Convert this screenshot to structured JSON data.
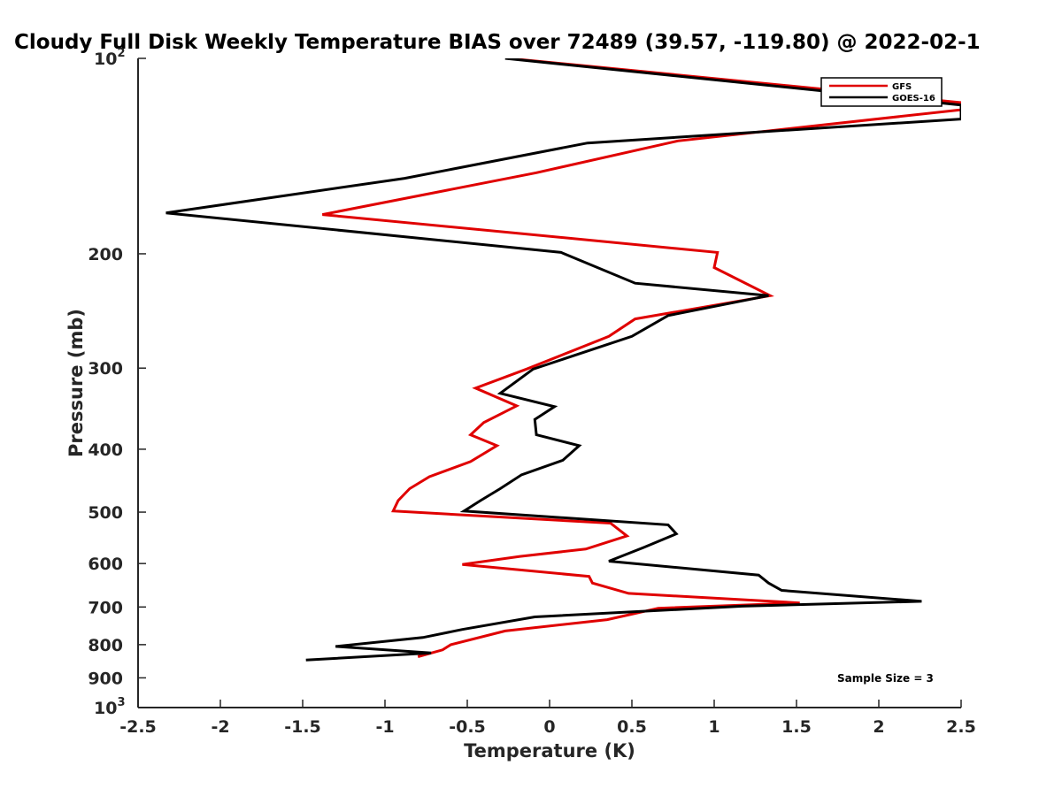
{
  "chart_data": {
    "type": "line",
    "title": "Cloudy Full Disk Weekly Temperature BIAS over 72489 (39.57, -119.80) @ 2022-02-1",
    "xlabel": "Temperature (K)",
    "ylabel": "Pressure (mb)",
    "xlim": [
      -2.5,
      2.5
    ],
    "ylim": [
      100,
      1000
    ],
    "y_scale": "log",
    "y_reversed": true,
    "x_ticks": [
      "-2.5",
      "-2",
      "-1.5",
      "-1",
      "-0.5",
      "0",
      "0.5",
      "1",
      "1.5",
      "2",
      "2.5"
    ],
    "y_ticks": [
      {
        "value": 100,
        "label": "10",
        "sup": "2"
      },
      {
        "value": 200,
        "label": "200",
        "sup": ""
      },
      {
        "value": 300,
        "label": "300",
        "sup": ""
      },
      {
        "value": 400,
        "label": "400",
        "sup": ""
      },
      {
        "value": 500,
        "label": "500",
        "sup": ""
      },
      {
        "value": 600,
        "label": "600",
        "sup": ""
      },
      {
        "value": 700,
        "label": "700",
        "sup": ""
      },
      {
        "value": 800,
        "label": "800",
        "sup": ""
      },
      {
        "value": 900,
        "label": "900",
        "sup": ""
      },
      {
        "value": 1000,
        "label": "10",
        "sup": "3"
      }
    ],
    "grid": false,
    "legend_position": "top-right",
    "annotation": "Sample Size = 3",
    "series": [
      {
        "name": "GFS",
        "color": "#e00000",
        "points": [
          [
            -0.25,
            100
          ],
          [
            2.5,
            117
          ],
          [
            2.5,
            120
          ],
          [
            0.78,
            134
          ],
          [
            -0.08,
            150
          ],
          [
            -1.38,
            174
          ],
          [
            1.02,
            199
          ],
          [
            1.0,
            210
          ],
          [
            1.34,
            232
          ],
          [
            0.52,
            252
          ],
          [
            0.36,
            268
          ],
          [
            -0.14,
            301
          ],
          [
            -0.45,
            322
          ],
          [
            -0.2,
            343
          ],
          [
            -0.4,
            364
          ],
          [
            -0.48,
            380
          ],
          [
            -0.32,
            395
          ],
          [
            -0.48,
            418
          ],
          [
            -0.73,
            441
          ],
          [
            -0.85,
            460
          ],
          [
            -0.92,
            480
          ],
          [
            -0.95,
            498
          ],
          [
            0.37,
            520
          ],
          [
            0.47,
            544
          ],
          [
            0.22,
            570
          ],
          [
            -0.18,
            585
          ],
          [
            -0.53,
            602
          ],
          [
            0.24,
            628
          ],
          [
            0.26,
            643
          ],
          [
            0.48,
            667
          ],
          [
            1.52,
            690
          ],
          [
            0.66,
            703
          ],
          [
            0.5,
            718
          ],
          [
            0.35,
            732
          ],
          [
            -0.27,
            762
          ],
          [
            -0.6,
            800
          ],
          [
            -0.65,
            815
          ],
          [
            -0.8,
            835
          ]
        ]
      },
      {
        "name": "GOES-16",
        "color": "#000000",
        "points": [
          [
            -0.27,
            100
          ],
          [
            2.5,
            118
          ],
          [
            2.5,
            124
          ],
          [
            0.23,
            135
          ],
          [
            -0.88,
            153
          ],
          [
            -2.33,
            173
          ],
          [
            0.07,
            199
          ],
          [
            0.52,
            222
          ],
          [
            1.33,
            232
          ],
          [
            0.72,
            249
          ],
          [
            0.5,
            268
          ],
          [
            -0.1,
            301
          ],
          [
            -0.3,
            328
          ],
          [
            0.03,
            344
          ],
          [
            -0.09,
            360
          ],
          [
            -0.08,
            380
          ],
          [
            0.18,
            395
          ],
          [
            0.08,
            416
          ],
          [
            -0.17,
            438
          ],
          [
            -0.3,
            460
          ],
          [
            -0.42,
            480
          ],
          [
            -0.52,
            498
          ],
          [
            0.72,
            523
          ],
          [
            0.77,
            540
          ],
          [
            0.57,
            567
          ],
          [
            0.36,
            595
          ],
          [
            1.27,
            625
          ],
          [
            1.33,
            643
          ],
          [
            1.41,
            660
          ],
          [
            2.26,
            686
          ],
          [
            1.17,
            698
          ],
          [
            -0.09,
            725
          ],
          [
            -0.53,
            758
          ],
          [
            -0.77,
            780
          ],
          [
            -1.3,
            805
          ],
          [
            -0.72,
            824
          ],
          [
            -1.48,
            845
          ]
        ]
      }
    ]
  }
}
